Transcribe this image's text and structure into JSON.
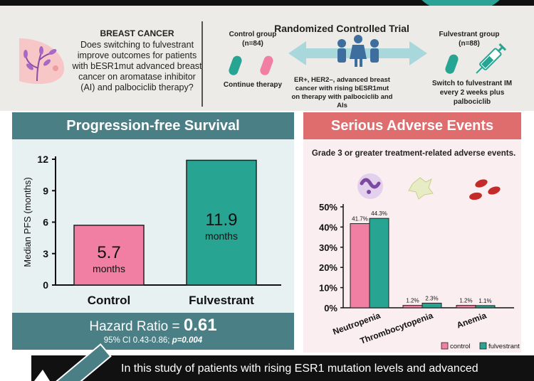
{
  "top": {
    "question_title": "BREAST CANCER",
    "question_text": "Does switching to fulvestrant improve outcomes for patients with bESR1mut advanced breast cancer on aromatase inhibitor (AI) and palbociclib therapy?",
    "control_group": "Control group",
    "control_n": "(n=84)",
    "control_action": "Continue therapy",
    "rct_title": "Randomized Controlled Trial",
    "rct_desc": "ER+, HER2–, advanced breast cancer with rising bESR1mut on therapy with palbociclib and AIs",
    "fulvestrant_group": "Fulvestrant group",
    "fulvestrant_n": "(n=88)",
    "fulvestrant_action": "Switch to fulvestrant IM every 2 weeks plus palbociclib"
  },
  "pfs": {
    "header": "Progression-free Survival",
    "hr_label": "Hazard Ratio =",
    "hr_value": "0.61",
    "ci_text": "95% CI 0.43-0.86;",
    "p_text": "p=0.004",
    "unit": "months"
  },
  "sae": {
    "header": "Serious Adverse Events",
    "grade_text": "Grade 3 or greater treatment-related adverse events."
  },
  "conclusion": {
    "text": "In this study of patients with rising ESR1 mutation levels and advanced"
  },
  "colors": {
    "pink": "#f17fa4",
    "teal": "#27a592",
    "header_teal": "#4a7f86",
    "header_red": "#df6d6e"
  },
  "chart_data": [
    {
      "type": "bar",
      "title": "Progression-free Survival",
      "ylabel": "Median PFS (months)",
      "xlabel": "",
      "categories": [
        "Control",
        "Fulvestrant"
      ],
      "values": [
        5.7,
        11.9
      ],
      "value_labels": [
        "5.7",
        "11.9"
      ],
      "ylim": [
        0,
        12
      ],
      "yticks": [
        0,
        3,
        6,
        9,
        12
      ],
      "colors": [
        "#f17fa4",
        "#27a592"
      ]
    },
    {
      "type": "bar",
      "title": "Grade 3 or greater treatment-related adverse events.",
      "categories": [
        "Neutropenia",
        "Thrombocytopenia",
        "Anemia"
      ],
      "series": [
        {
          "name": "control",
          "values": [
            41.7,
            1.2,
            1.2
          ],
          "labels": [
            "41.7%",
            "1.2%",
            "1.2%"
          ],
          "color": "#f17fa4"
        },
        {
          "name": "fulvestrant",
          "values": [
            44.3,
            2.3,
            1.1
          ],
          "labels": [
            "44.3%",
            "2.3%",
            "1.1%"
          ],
          "color": "#27a592"
        }
      ],
      "ylim": [
        0,
        50
      ],
      "yticks": [
        0,
        10,
        20,
        30,
        40,
        50
      ],
      "ytick_labels": [
        "0%",
        "10%",
        "20%",
        "30%",
        "40%",
        "50%"
      ],
      "legend": "bottom-right"
    }
  ]
}
